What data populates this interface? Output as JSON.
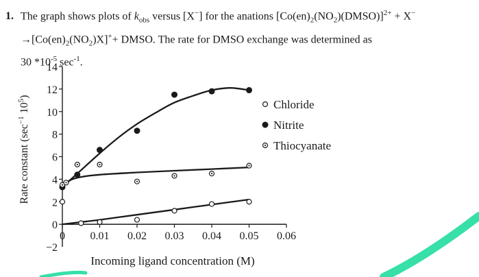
{
  "question": {
    "number": "1.",
    "line1_a": "The graph shows plots of ",
    "kobs_k": "k",
    "kobs_sub": "obs",
    "line1_b": " versus [X",
    "minus_sup": "−",
    "line1_c": "] for the anations [Co(en)",
    "sub2a": "2",
    "line1_d": "(NO",
    "sub2b": "2",
    "line1_e": ")(DMSO)]",
    "sup_2plus": "2+",
    "line1_f": " + X",
    "line1_sup_minus": "−",
    "line2_a": "→[Co(en)",
    "sub2c": "2",
    "line2_b": "(NO",
    "sub2d": "2",
    "line2_c": ")X]",
    "sup_plus": "+",
    "line2_d": "+ DMSO. The rate for DMSO exchange was determined as",
    "line3_a": "30 *10",
    "sup_exp": "-5",
    "line3_b": " sec",
    "sup_exp2": "-1",
    "line3_c": "."
  },
  "colors": {
    "ink": "#1a1a1a",
    "accent_stroke": "#36e0a8"
  },
  "chart_data": {
    "type": "scatter",
    "xlabel": "Incoming ligand concentration (M)",
    "ylabel": "Rate constant (sec",
    "ylabel_sup": "−1",
    "ylabel_end": " 10",
    "ylabel_sup2": "5",
    "ylabel_close": ")",
    "xlim": [
      0,
      0.06
    ],
    "ylim": [
      -2,
      14
    ],
    "x_ticks": [
      0,
      0.01,
      0.02,
      0.03,
      0.04,
      0.05,
      0.06
    ],
    "x_tick_labels": [
      "0",
      "0.01",
      "0.02",
      "0.03",
      "0.04",
      "0.05",
      "0.06"
    ],
    "y_ticks": [
      -2,
      0,
      2,
      4,
      6,
      8,
      10,
      12,
      14
    ],
    "y_tick_labels": [
      "−2",
      "0",
      "2",
      "4",
      "6",
      "8",
      "10",
      "12",
      "14"
    ],
    "legend_position": "right",
    "series": [
      {
        "name": "Chloride",
        "marker": "open-circle",
        "x": [
          0.0,
          0.005,
          0.01,
          0.02,
          0.03,
          0.04,
          0.05
        ],
        "y": [
          2.0,
          0.1,
          0.2,
          0.4,
          1.2,
          1.8,
          2.0
        ],
        "fit_x": [
          0.0,
          0.01,
          0.02,
          0.03,
          0.04,
          0.05
        ],
        "fit_y": [
          0.0,
          0.4,
          0.85,
          1.3,
          1.75,
          2.2
        ]
      },
      {
        "name": "Nitrite",
        "marker": "filled-circle",
        "x": [
          0.0,
          0.004,
          0.01,
          0.02,
          0.03,
          0.04,
          0.05
        ],
        "y": [
          3.3,
          4.4,
          6.6,
          8.3,
          11.5,
          11.8,
          11.9
        ],
        "fit_x": [
          0.0,
          0.005,
          0.01,
          0.015,
          0.02,
          0.025,
          0.03,
          0.035,
          0.04,
          0.045,
          0.05
        ],
        "fit_y": [
          3.3,
          4.8,
          6.3,
          7.7,
          8.9,
          9.9,
          10.8,
          11.4,
          11.9,
          12.1,
          11.9
        ]
      },
      {
        "name": "Thiocyanate",
        "marker": "dotted-circle",
        "x": [
          0.0,
          0.001,
          0.004,
          0.01,
          0.02,
          0.03,
          0.04,
          0.05
        ],
        "y": [
          3.5,
          3.7,
          5.3,
          5.3,
          3.8,
          4.3,
          4.5,
          5.2
        ],
        "fit_x": [
          0.0,
          0.002,
          0.005,
          0.01,
          0.02,
          0.03,
          0.04,
          0.05
        ],
        "fit_y": [
          3.3,
          3.9,
          4.2,
          4.4,
          4.6,
          4.75,
          4.9,
          5.05
        ]
      }
    ]
  }
}
